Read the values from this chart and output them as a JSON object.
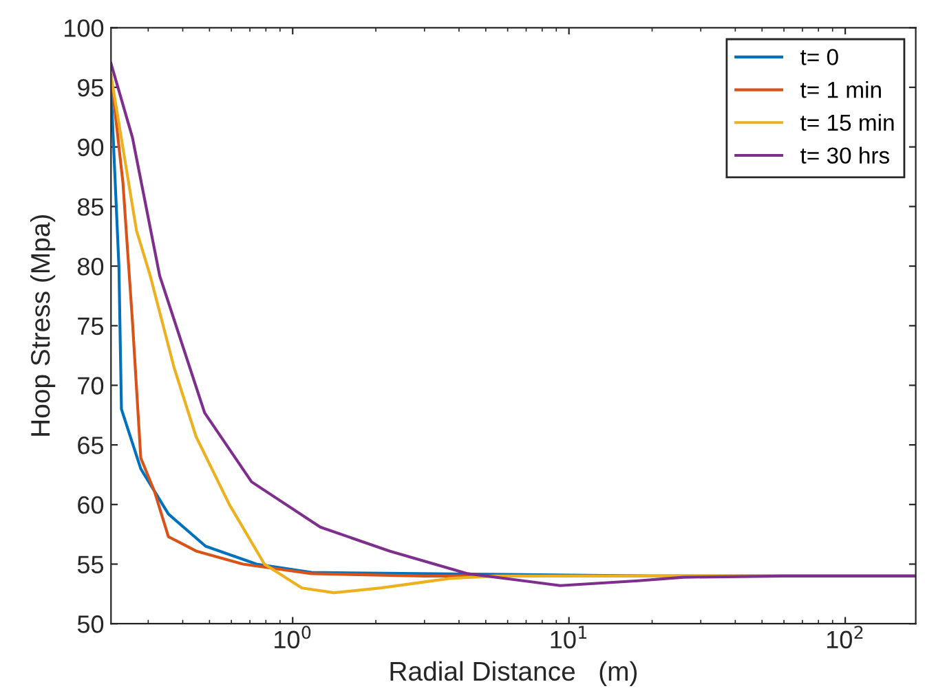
{
  "chart_data": {
    "type": "line",
    "xlabel": "Radial Distance   (m)",
    "ylabel": "Hoop Stress (Mpa)",
    "log": "x",
    "xlim": [
      0.22,
      180
    ],
    "ylim": [
      50,
      100
    ],
    "xticks": [
      {
        "value": 1,
        "label": "10$^{0}$"
      },
      {
        "value": 10,
        "label": "10$^{1}$"
      },
      {
        "value": 100,
        "label": "10$^{2}$"
      }
    ],
    "yticks": [
      50,
      55,
      60,
      65,
      70,
      75,
      80,
      85,
      90,
      95,
      100
    ],
    "grid": false,
    "legend": "top right",
    "line_style": "solid",
    "marker": "none",
    "series": [
      {
        "name": "t= 0",
        "color": "#0072bd",
        "x": [
          0.22,
          0.235,
          0.24,
          0.282,
          0.355,
          0.484,
          0.74,
          1.17,
          20,
          180
        ],
        "values": [
          95,
          80,
          68,
          63.0,
          59.2,
          56.5,
          55.0,
          54.3,
          54,
          54
        ]
      },
      {
        "name": "t= 1 min",
        "color": "#d95319",
        "x": [
          0.22,
          0.243,
          0.263,
          0.282,
          0.316,
          0.355,
          0.447,
          0.66,
          1.17,
          3,
          20,
          180
        ],
        "values": [
          96,
          87,
          75.4,
          63.9,
          61.1,
          57.3,
          56.1,
          55.0,
          54.2,
          54,
          54,
          54
        ]
      },
      {
        "name": "t= 15 min",
        "color": "#edb120",
        "x": [
          0.22,
          0.272,
          0.305,
          0.372,
          0.447,
          0.59,
          0.79,
          1.08,
          1.41,
          2.09,
          3.7,
          5.4,
          20,
          180
        ],
        "values": [
          96,
          83.0,
          79.2,
          71.5,
          65.7,
          60.0,
          55.0,
          53.0,
          52.6,
          53.0,
          53.8,
          54,
          54,
          54
        ]
      },
      {
        "name": "t= 30 hrs",
        "color": "#7e2f8e",
        "x": [
          0.22,
          0.263,
          0.33,
          0.48,
          0.71,
          1.26,
          2.24,
          4.3,
          9.3,
          17.8,
          26,
          60,
          180
        ],
        "values": [
          97,
          90.8,
          79.2,
          67.7,
          61.9,
          58.1,
          56.1,
          54.2,
          53.2,
          53.6,
          53.9,
          54,
          54
        ]
      }
    ]
  }
}
